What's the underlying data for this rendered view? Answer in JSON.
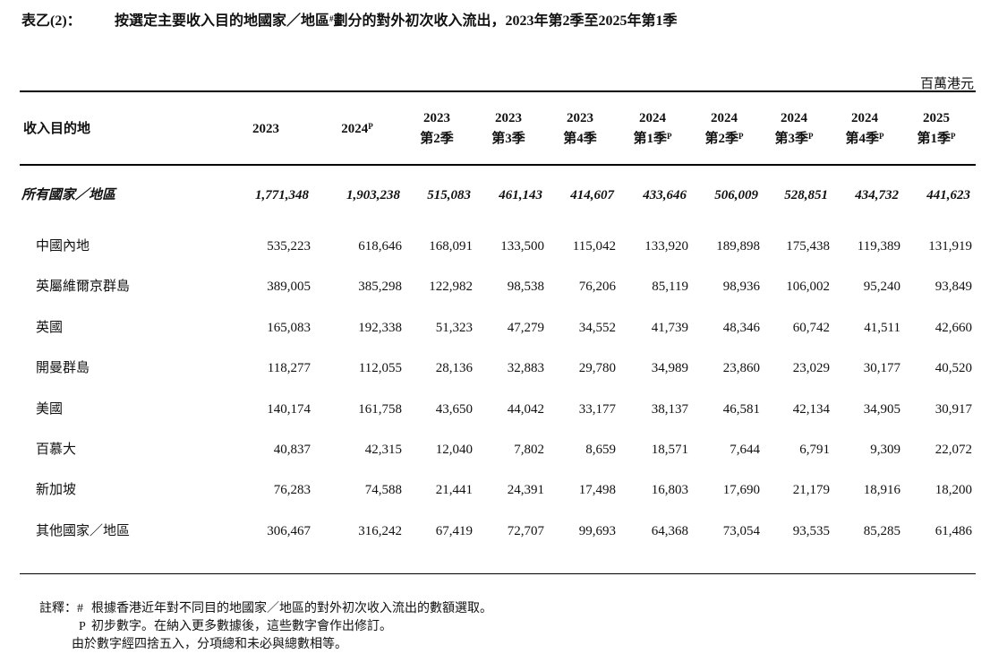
{
  "header": {
    "label": "表乙(2)：",
    "title_before": "按選定主要收入目的地國家／地區",
    "title_mark": "#",
    "title_after": "劃分的對外初次收入流出，2023年第2季至2025年第1季",
    "unit": "百萬港元"
  },
  "table": {
    "row_header": "收入目的地",
    "columns": [
      {
        "year": "2023"
      },
      {
        "year": "2024",
        "mark": "P"
      },
      {
        "year": "2023",
        "quarter": "第2季"
      },
      {
        "year": "2023",
        "quarter": "第3季"
      },
      {
        "year": "2023",
        "quarter": "第4季"
      },
      {
        "year": "2024",
        "quarter": "第1季",
        "mark": "P"
      },
      {
        "year": "2024",
        "quarter": "第2季",
        "mark": "P"
      },
      {
        "year": "2024",
        "quarter": "第3季",
        "mark": "P"
      },
      {
        "year": "2024",
        "quarter": "第4季",
        "mark": "P"
      },
      {
        "year": "2025",
        "quarter": "第1季",
        "mark": "P"
      }
    ],
    "total": {
      "label": "所有國家／地區",
      "values": [
        "1,771,348",
        "1,903,238",
        "515,083",
        "461,143",
        "414,607",
        "433,646",
        "506,009",
        "528,851",
        "434,732",
        "441,623"
      ]
    },
    "rows": [
      {
        "label": "中國內地",
        "values": [
          "535,223",
          "618,646",
          "168,091",
          "133,500",
          "115,042",
          "133,920",
          "189,898",
          "175,438",
          "119,389",
          "131,919"
        ]
      },
      {
        "label": "英屬維爾京群島",
        "values": [
          "389,005",
          "385,298",
          "122,982",
          "98,538",
          "76,206",
          "85,119",
          "98,936",
          "106,002",
          "95,240",
          "93,849"
        ]
      },
      {
        "label": "英國",
        "values": [
          "165,083",
          "192,338",
          "51,323",
          "47,279",
          "34,552",
          "41,739",
          "48,346",
          "60,742",
          "41,511",
          "42,660"
        ]
      },
      {
        "label": "開曼群島",
        "values": [
          "118,277",
          "112,055",
          "28,136",
          "32,883",
          "29,780",
          "34,989",
          "23,860",
          "23,029",
          "30,177",
          "40,520"
        ]
      },
      {
        "label": "美國",
        "values": [
          "140,174",
          "161,758",
          "43,650",
          "44,042",
          "33,177",
          "38,137",
          "46,581",
          "42,134",
          "34,905",
          "30,917"
        ]
      },
      {
        "label": "百慕大",
        "values": [
          "40,837",
          "42,315",
          "12,040",
          "7,802",
          "8,659",
          "18,571",
          "7,644",
          "6,791",
          "9,309",
          "22,072"
        ]
      },
      {
        "label": "新加坡",
        "values": [
          "76,283",
          "74,588",
          "21,441",
          "24,391",
          "17,498",
          "16,803",
          "17,690",
          "21,179",
          "18,916",
          "18,200"
        ]
      },
      {
        "label": "其他國家／地區",
        "values": [
          "306,467",
          "316,242",
          "67,419",
          "72,707",
          "99,693",
          "64,368",
          "73,054",
          "93,535",
          "85,285",
          "61,486"
        ]
      }
    ]
  },
  "notes": {
    "heading": "註釋：",
    "items": [
      {
        "mark": "#",
        "text": "根據香港近年對不同目的地國家／地區的對外初次收入流出的數額選取。"
      },
      {
        "mark": "P",
        "text": "初步數字。在納入更多數據後，這些數字會作出修訂。"
      },
      {
        "text": "由於數字經四捨五入，分項總和未必與總數相等。"
      }
    ]
  }
}
